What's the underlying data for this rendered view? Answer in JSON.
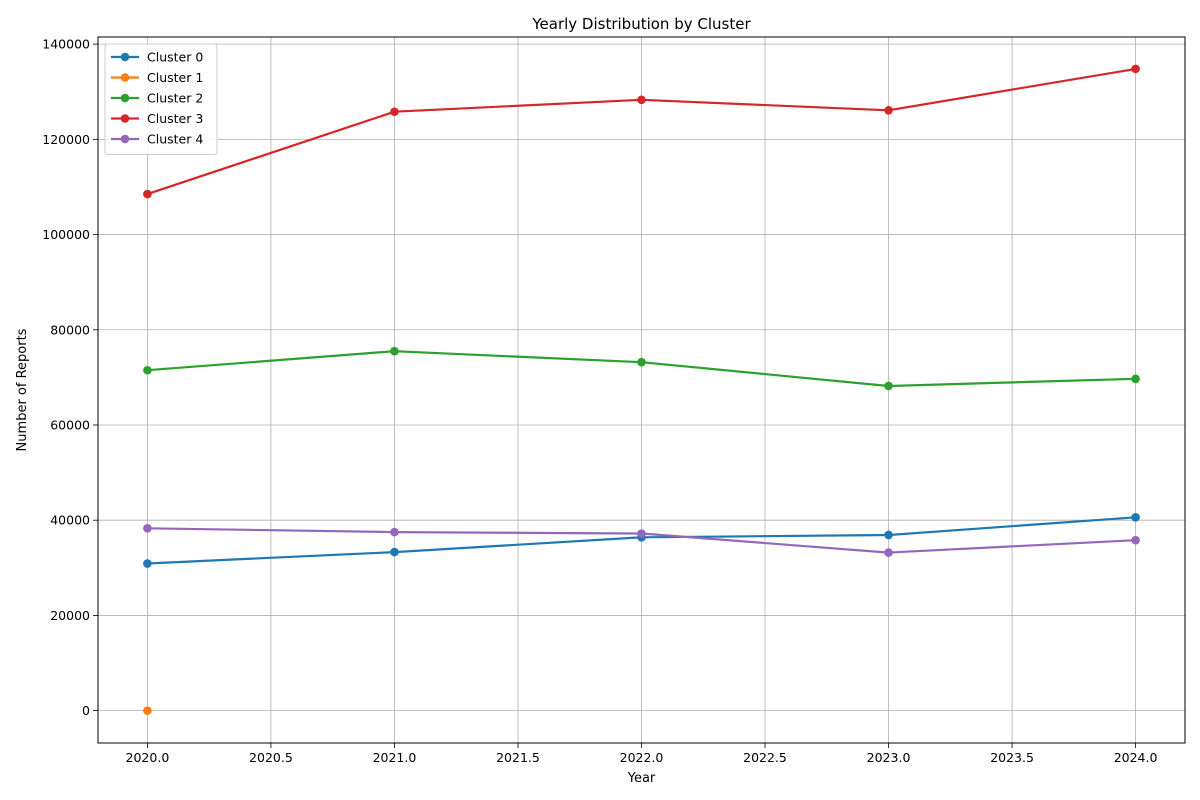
{
  "chart_data": {
    "type": "line",
    "title": "Yearly Distribution by Cluster",
    "xlabel": "Year",
    "ylabel": "Number of Reports",
    "xlim": [
      2019.8,
      2024.2
    ],
    "ylim": [
      -6800,
      141500
    ],
    "xticks": [
      2020.0,
      2020.5,
      2021.0,
      2021.5,
      2022.0,
      2022.5,
      2023.0,
      2023.5,
      2024.0
    ],
    "xtick_labels": [
      "2020.0",
      "2020.5",
      "2021.0",
      "2021.5",
      "2022.0",
      "2022.5",
      "2023.0",
      "2023.5",
      "2024.0"
    ],
    "yticks": [
      0,
      20000,
      40000,
      60000,
      80000,
      100000,
      120000,
      140000
    ],
    "ytick_labels": [
      "0",
      "20000",
      "40000",
      "60000",
      "80000",
      "100000",
      "120000",
      "140000"
    ],
    "grid": true,
    "legend_position": "top-left",
    "series": [
      {
        "name": "Cluster 0",
        "color": "#1f77b4",
        "x": [
          2020,
          2021,
          2022,
          2023,
          2024
        ],
        "values": [
          30900,
          33300,
          36400,
          36900,
          40600
        ]
      },
      {
        "name": "Cluster 1",
        "color": "#ff7f0e",
        "x": [
          2020
        ],
        "values": [
          0
        ]
      },
      {
        "name": "Cluster 2",
        "color": "#2ca02c",
        "x": [
          2020,
          2021,
          2022,
          2023,
          2024
        ],
        "values": [
          71500,
          75500,
          73200,
          68200,
          69700
        ]
      },
      {
        "name": "Cluster 3",
        "color": "#d62728",
        "x": [
          2020,
          2021,
          2022,
          2023,
          2024
        ],
        "values": [
          108500,
          125800,
          128300,
          126100,
          134800
        ]
      },
      {
        "name": "Cluster 4",
        "color": "#9467bd",
        "x": [
          2020,
          2021,
          2022,
          2023,
          2024
        ],
        "values": [
          38300,
          37500,
          37200,
          33200,
          35800
        ]
      }
    ]
  }
}
